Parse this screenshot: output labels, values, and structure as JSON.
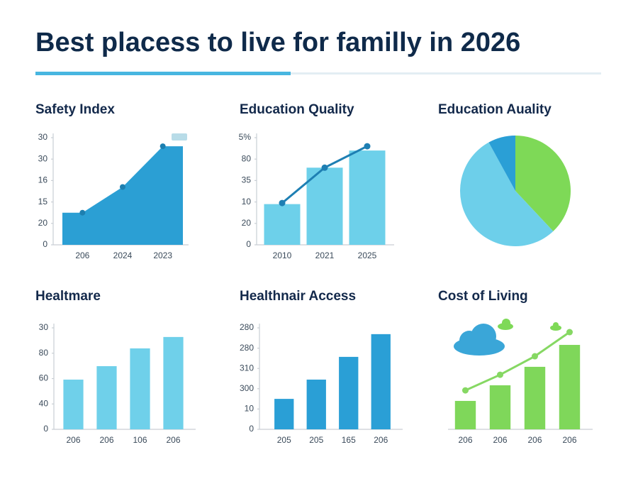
{
  "title": "Best placess to live for familly in 2026",
  "chart_data": [
    {
      "type": "area",
      "title": "Safety Index",
      "categories": [
        "206",
        "2024",
        "2023"
      ],
      "series": [
        {
          "color": "#2b9fd4",
          "values": [
            15,
            27,
            46
          ]
        }
      ],
      "ylim": [
        0,
        50
      ],
      "yticks": [
        0,
        {
          "value": 10,
          "label": "20"
        },
        {
          "value": 20,
          "label": "15"
        },
        {
          "value": 30,
          "label": "16"
        },
        {
          "value": 40,
          "label": "30"
        },
        {
          "value": 50,
          "label": "30"
        }
      ]
    },
    {
      "type": "bar",
      "title": "Education Quality",
      "categories": [
        "2010",
        "2021",
        "2025"
      ],
      "series": [
        {
          "color": "#6dd0ea",
          "values": [
            19,
            36,
            44
          ]
        },
        {
          "type": "line",
          "color": "#1e7fb3",
          "values": [
            19.5,
            36,
            46
          ]
        }
      ],
      "ylim": [
        0,
        50
      ],
      "yticks": [
        0,
        {
          "value": 10,
          "label": "20"
        },
        {
          "value": 20,
          "label": "10"
        },
        {
          "value": 30,
          "label": "35"
        },
        {
          "value": 40,
          "label": "80"
        },
        {
          "value": 50,
          "label": "5%"
        }
      ]
    },
    {
      "type": "pie",
      "title": "Education Auality",
      "values": [
        38,
        54,
        8
      ],
      "colors": [
        "#7ed957",
        "#6dcfea",
        "#2a9fd6"
      ]
    },
    {
      "type": "bar",
      "title": "Healtmare",
      "categories": [
        "206",
        "206",
        "106",
        "206"
      ],
      "series": [
        {
          "color": "#6fd0ea",
          "values": [
            19.6,
            24.9,
            31.9,
            36.4
          ]
        }
      ],
      "ylim": [
        0,
        40
      ],
      "yticks": [
        0,
        {
          "value": 10,
          "label": "40"
        },
        {
          "value": 20,
          "label": "60"
        },
        {
          "value": 30,
          "label": "80"
        },
        {
          "value": 40,
          "label": "30"
        }
      ]
    },
    {
      "type": "bar",
      "title": "Healthnair Access",
      "categories": [
        "205",
        "205",
        "165",
        "206"
      ],
      "series": [
        {
          "color": "#2a9fd6",
          "values": [
            15,
            24.5,
            35.7,
            46.9
          ]
        }
      ],
      "ylim": [
        0,
        50
      ],
      "yticks": [
        0,
        10,
        {
          "value": 20,
          "label": "300"
        },
        {
          "value": 30,
          "label": "310"
        },
        {
          "value": 40,
          "label": "280"
        },
        {
          "value": 50,
          "label": "280"
        }
      ]
    },
    {
      "type": "bar",
      "title": "Cost of Living",
      "categories": [
        "206",
        "206",
        "206",
        "206"
      ],
      "series": [
        {
          "color": "#7fd75a",
          "values": [
            14,
            21.7,
            30.8,
            41.6
          ]
        },
        {
          "type": "line",
          "color": "#86d863",
          "values": [
            19.2,
            26.9,
            36,
            47.9
          ]
        }
      ],
      "ylim": [
        0,
        50
      ]
    }
  ]
}
